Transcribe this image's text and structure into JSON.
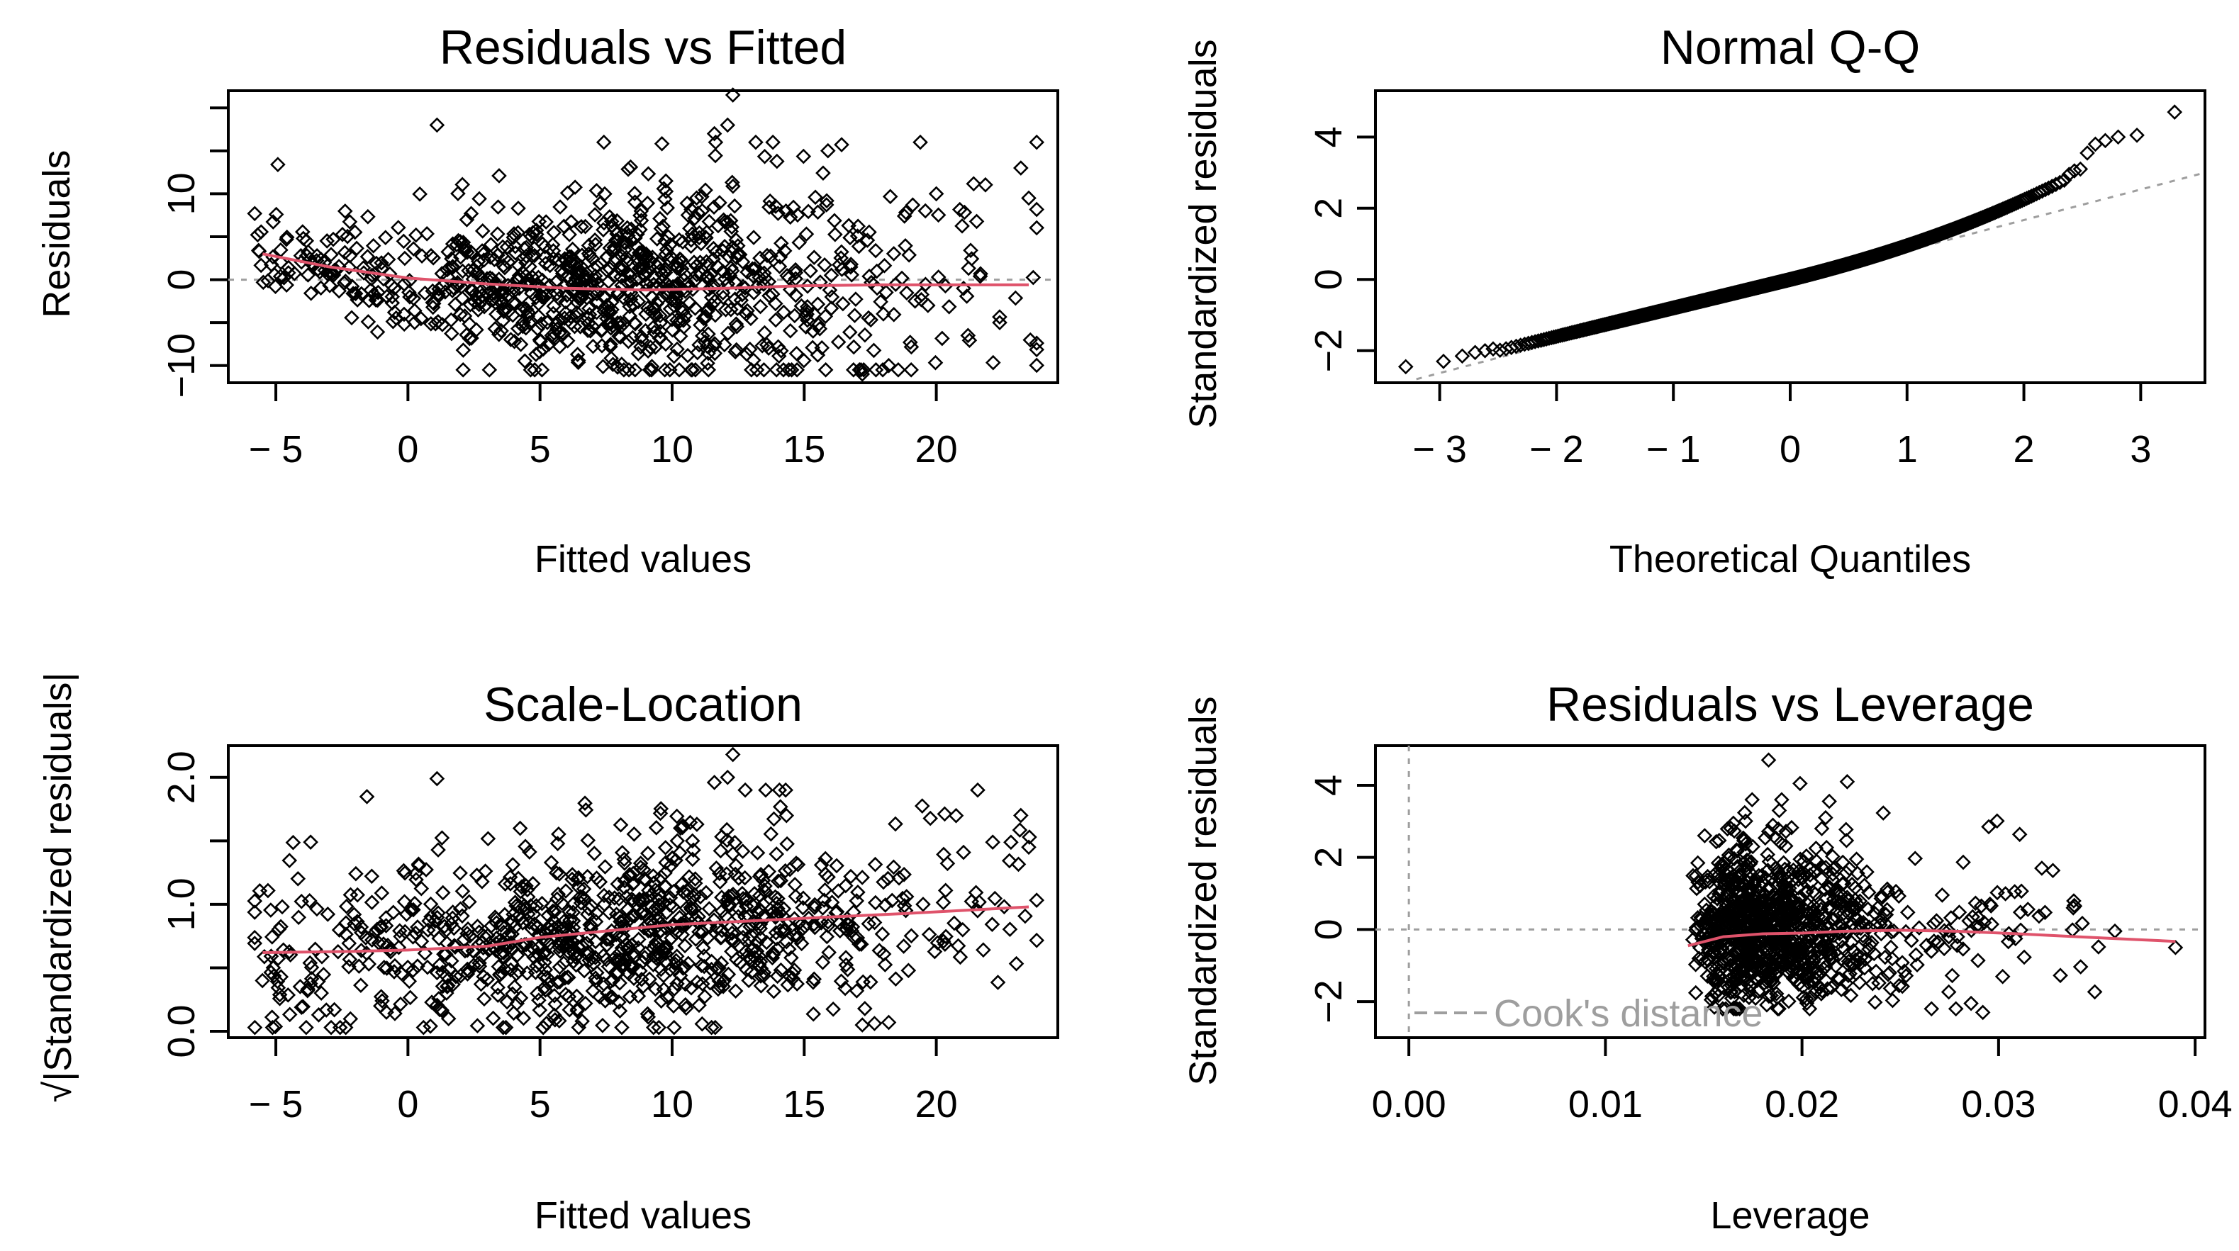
{
  "figure": {
    "colors": {
      "point": "#000000",
      "smooth": "#DF536B",
      "reference": "#9E9E9E"
    }
  },
  "chart_data": [
    {
      "type": "scatter",
      "title": "Residuals vs Fitted",
      "xlabel": "Fitted values",
      "ylabel": "Residuals",
      "xlim": [
        -6.8,
        24.6
      ],
      "ylim": [
        -12,
        22
      ],
      "xticks": [
        -5,
        0,
        5,
        10,
        15,
        20
      ],
      "xtick_labels": [
        "− 5",
        "0",
        "5",
        "10",
        "15",
        "20"
      ],
      "yticks": [
        -10,
        0,
        10
      ],
      "ytick_labels": [
        "−10",
        "0",
        "10"
      ],
      "extra_yticks": [
        -15,
        -5,
        5,
        15,
        20
      ],
      "reference_line": {
        "orientation": "horizontal",
        "value": 0
      },
      "smooth": {
        "x": [
          -5.5,
          -3,
          0,
          3,
          6,
          9,
          12,
          15,
          18,
          21,
          23.5
        ],
        "y": [
          3,
          1.5,
          0.2,
          -0.5,
          -1,
          -1.2,
          -1,
          -0.7,
          -0.6,
          -0.6,
          -0.6
        ]
      },
      "points": {
        "n": 1000,
        "seed": 11,
        "highlight": [
          [
            -4.6,
            4.7
          ],
          [
            1.1,
            18
          ],
          [
            12.3,
            21.5
          ],
          [
            12.1,
            18
          ],
          [
            11.6,
            17
          ],
          [
            17.2,
            -11
          ],
          [
            18.2,
            -10
          ],
          [
            23.2,
            13
          ],
          [
            23.5,
            9.5
          ],
          [
            20,
            10
          ],
          [
            21.2,
            -6.5
          ],
          [
            22.4,
            -5
          ]
        ]
      }
    },
    {
      "type": "scatter",
      "title": "Normal Q-Q",
      "xlabel": "Theoretical Quantiles",
      "ylabel": "Standardized residuals",
      "xlim": [
        -3.55,
        3.55
      ],
      "ylim": [
        -2.9,
        5.3
      ],
      "xticks": [
        -3,
        -2,
        -1,
        0,
        1,
        2,
        3
      ],
      "xtick_labels": [
        "− 3",
        "− 2",
        "− 1",
        "0",
        "1",
        "2",
        "3"
      ],
      "yticks": [
        -2,
        0,
        2,
        4
      ],
      "ytick_labels": [
        "−2",
        "0",
        "2",
        "4"
      ],
      "reference_line": {
        "type": "qq",
        "from": [
          -3.2,
          -2.8
        ],
        "to": [
          3.55,
          3.0
        ]
      },
      "qq": {
        "n": 1000,
        "min_theoretical": -3.3,
        "max_theoretical": 3.3,
        "lower_tail_values": [
          -2.45,
          -2.3,
          -2.15,
          -2.05,
          -2.0,
          -1.95
        ],
        "upper_tail_values": [
          2.95,
          3.05,
          3.1,
          3.55,
          3.8,
          3.9,
          4.0,
          4.05,
          4.7
        ]
      }
    },
    {
      "type": "scatter",
      "title": "Scale-Location",
      "xlabel": "Fitted values",
      "ylabel": "√|Standardized residuals|",
      "xlim": [
        -6.8,
        24.6
      ],
      "ylim": [
        -0.05,
        2.25
      ],
      "xticks": [
        -5,
        0,
        5,
        10,
        15,
        20
      ],
      "xtick_labels": [
        "− 5",
        "0",
        "5",
        "10",
        "15",
        "20"
      ],
      "yticks": [
        0,
        1,
        2
      ],
      "ytick_labels": [
        "0.0",
        "1.0",
        "2.0"
      ],
      "extra_yticks": [
        0.5,
        1.5
      ],
      "smooth": {
        "x": [
          -5.5,
          -2,
          0,
          3,
          5,
          8,
          10,
          13,
          16,
          19,
          23.5
        ],
        "y": [
          0.62,
          0.63,
          0.64,
          0.67,
          0.74,
          0.8,
          0.84,
          0.87,
          0.9,
          0.93,
          0.98
        ]
      },
      "points": {
        "n": 1000,
        "seed": 23,
        "highlight": [
          [
            1.1,
            1.99
          ],
          [
            12.3,
            2.18
          ],
          [
            12.1,
            2.0
          ],
          [
            11.6,
            1.96
          ],
          [
            23.2,
            1.7
          ],
          [
            23.5,
            1.45
          ],
          [
            17.2,
            0.05
          ],
          [
            18.2,
            0.07
          ],
          [
            19.5,
            1.0
          ],
          [
            21,
            0.8
          ]
        ]
      }
    },
    {
      "type": "scatter",
      "title": "Residuals vs Leverage",
      "xlabel": "Leverage",
      "ylabel": "Standardized residuals",
      "xlim": [
        -0.0017,
        0.0405
      ],
      "ylim": [
        -3.0,
        5.1
      ],
      "xticks": [
        0,
        0.01,
        0.02,
        0.03,
        0.04
      ],
      "xtick_labels": [
        "0.00",
        "0.01",
        "0.02",
        "0.03",
        "0.04"
      ],
      "yticks": [
        -2,
        0,
        2,
        4
      ],
      "ytick_labels": [
        "−2",
        "0",
        "2",
        "4"
      ],
      "reference_lines": [
        {
          "orientation": "horizontal",
          "value": 0
        },
        {
          "orientation": "vertical",
          "value": 0
        }
      ],
      "legend": {
        "entries": [
          "Cook's distance"
        ],
        "position": "bottom-left"
      },
      "smooth": {
        "x": [
          0.0142,
          0.016,
          0.018,
          0.02,
          0.022,
          0.025,
          0.028,
          0.031,
          0.034,
          0.037,
          0.039
        ],
        "y": [
          -0.45,
          -0.2,
          -0.12,
          -0.1,
          -0.05,
          -0.02,
          -0.05,
          -0.12,
          -0.2,
          -0.28,
          -0.33
        ]
      },
      "points": {
        "n": 1000,
        "seed": 37,
        "highlight": [
          [
            0.0183,
            4.7
          ],
          [
            0.0199,
            4.05
          ],
          [
            0.0223,
            4.1
          ],
          [
            0.0295,
            2.85
          ],
          [
            0.039,
            -0.5
          ],
          [
            0.0286,
            -2.05
          ],
          [
            0.0292,
            -2.3
          ],
          [
            0.0212,
            3.1
          ],
          [
            0.0322,
            1.7
          ],
          [
            0.0338,
            0.6
          ]
        ]
      }
    }
  ]
}
